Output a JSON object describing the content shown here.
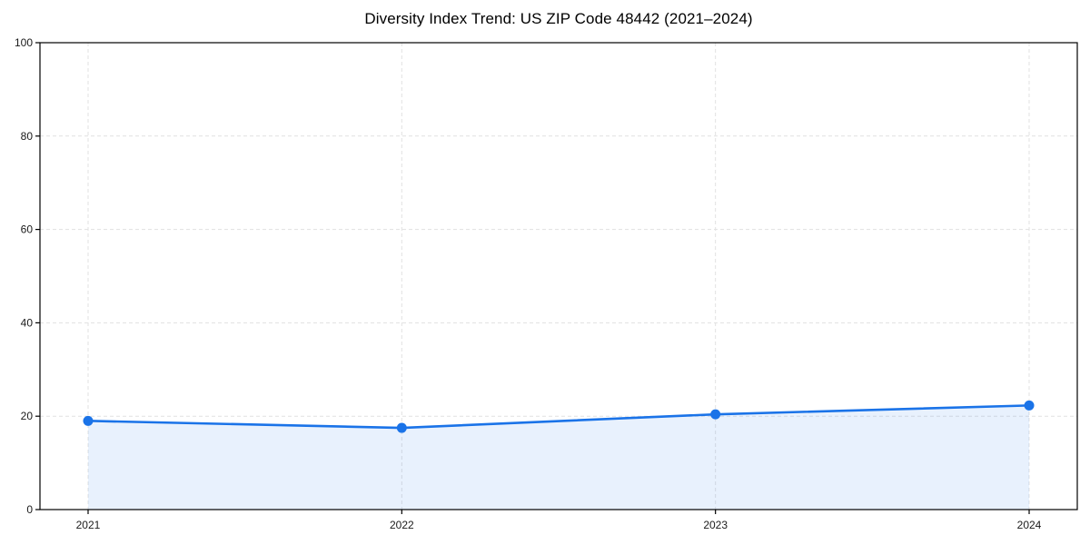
{
  "title": "Diversity Index Trend: US ZIP Code 48442 (2021–2024)",
  "chart_data": {
    "type": "area",
    "title": "Diversity Index Trend: US ZIP Code 48442 (2021–2024)",
    "categories": [
      "2021",
      "2022",
      "2023",
      "2024"
    ],
    "series": [
      {
        "name": "Diversity Index",
        "values": [
          19.0,
          17.5,
          20.4,
          22.3
        ]
      }
    ],
    "xlabel": "",
    "ylabel": "",
    "ylim": [
      0,
      100
    ],
    "yticks": [
      0,
      20,
      40,
      60,
      80,
      100
    ],
    "grid": true,
    "grid_style": "dashed",
    "legend_position": "none",
    "marker": "circle",
    "colors": {
      "line": "#1a73e8",
      "marker": "#1a73e8",
      "fill": "rgba(26, 115, 232, 0.10)",
      "grid": "#e1e1e1",
      "axis": "#000000",
      "tick_label": "#1a1a1a",
      "title": "#000000",
      "background": "#ffffff"
    }
  }
}
